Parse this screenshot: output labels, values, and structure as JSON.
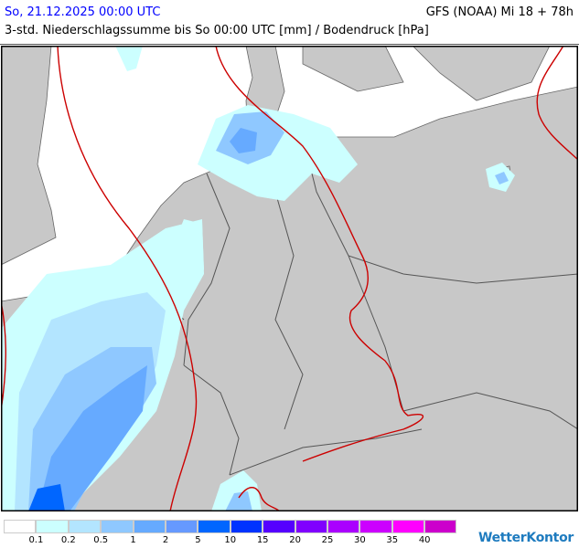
{
  "header": {
    "valid_time": "So, 21.12.2025 00:00 UTC",
    "model_run": "GFS (NOAA) Mi 18 + 78h",
    "subtitle": "3-std. Niederschlagssumme bis So 00:00 UTC [mm] / Bodendruck [hPa]"
  },
  "map": {
    "land_color": "#c8c8c8",
    "sea_color": "#ffffff",
    "isobar_color": "#cc0000",
    "border_color": "#555555"
  },
  "legend": {
    "colors": [
      "#ffffff",
      "#ccffff",
      "#b3e5ff",
      "#8fc8ff",
      "#66aaff",
      "#6699ff",
      "#0066ff",
      "#0033ff",
      "#5500ff",
      "#8000ff",
      "#aa00ff",
      "#cc00ff",
      "#ff00ff",
      "#cc00cc"
    ],
    "labels": [
      "0.1",
      "0.2",
      "0.5",
      "1",
      "2",
      "5",
      "10",
      "15",
      "20",
      "25",
      "30",
      "35",
      "40"
    ]
  },
  "logo": "WetterKontor"
}
